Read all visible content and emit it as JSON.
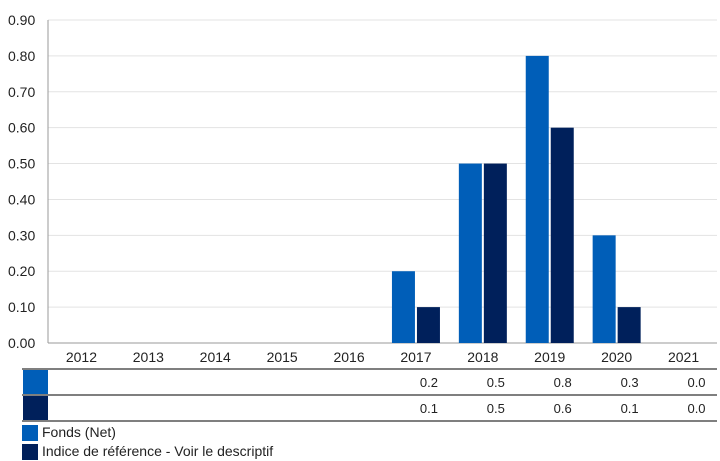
{
  "chart_data": {
    "type": "bar",
    "categories": [
      "2012",
      "2013",
      "2014",
      "2015",
      "2016",
      "2017",
      "2018",
      "2019",
      "2020",
      "2021"
    ],
    "series": [
      {
        "name": "Fonds (Net)",
        "color": "#005eb8",
        "values": [
          null,
          null,
          null,
          null,
          null,
          0.2,
          0.5,
          0.8,
          0.3,
          0.0
        ],
        "table_values": [
          "",
          "",
          "",
          "",
          "",
          "0.2",
          "0.5",
          "0.8",
          "0.3",
          "0.0"
        ]
      },
      {
        "name": "Indice de référence - Voir le descriptif",
        "color": "#00205b",
        "values": [
          null,
          null,
          null,
          null,
          null,
          0.1,
          0.5,
          0.6,
          0.1,
          0.0
        ],
        "table_values": [
          "",
          "",
          "",
          "",
          "",
          "0.1",
          "0.5",
          "0.6",
          "0.1",
          "0.0"
        ]
      }
    ],
    "ylim": [
      0,
      0.9
    ],
    "yticks": [
      "0.00",
      "0.10",
      "0.20",
      "0.30",
      "0.40",
      "0.50",
      "0.60",
      "0.70",
      "0.80",
      "0.90"
    ],
    "grid": true,
    "legend": "bottom-left"
  }
}
